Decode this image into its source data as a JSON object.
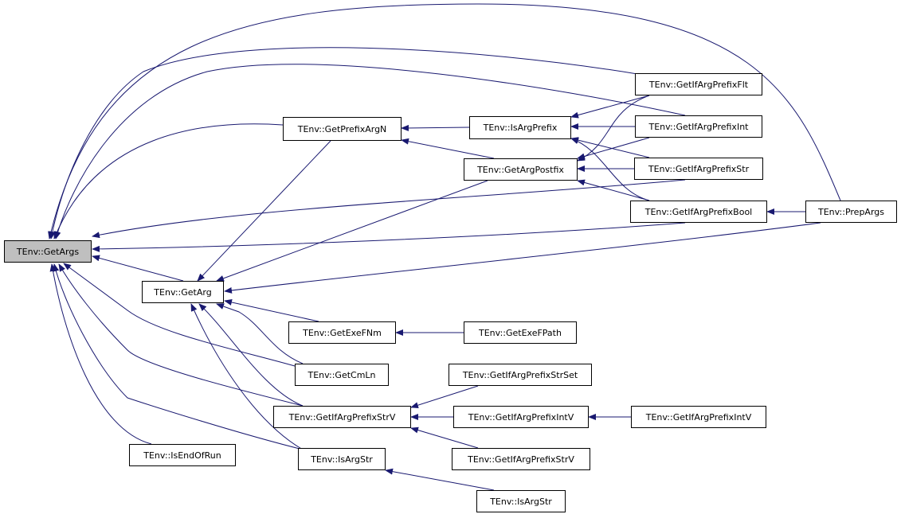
{
  "colors": {
    "edge": "#191970",
    "root_fill": "#bfbfbf",
    "node_fill": "#ffffff"
  },
  "nodes": [
    {
      "id": "getargs",
      "label": "TEnv::GetArgs",
      "root": true
    },
    {
      "id": "prefixargn",
      "label": "TEnv::GetPrefixArgN"
    },
    {
      "id": "isargprefix",
      "label": "TEnv::IsArgPrefix"
    },
    {
      "id": "postfix",
      "label": "TEnv::GetArgPostfix"
    },
    {
      "id": "flt",
      "label": "TEnv::GetIfArgPrefixFlt"
    },
    {
      "id": "int",
      "label": "TEnv::GetIfArgPrefixInt"
    },
    {
      "id": "str",
      "label": "TEnv::GetIfArgPrefixStr"
    },
    {
      "id": "bool",
      "label": "TEnv::GetIfArgPrefixBool"
    },
    {
      "id": "prepargs",
      "label": "TEnv::PrepArgs"
    },
    {
      "id": "getarg",
      "label": "TEnv::GetArg"
    },
    {
      "id": "exefnm",
      "label": "TEnv::GetExeFNm"
    },
    {
      "id": "exefpath",
      "label": "TEnv::GetExeFPath"
    },
    {
      "id": "cmln",
      "label": "TEnv::GetCmLn"
    },
    {
      "id": "strset",
      "label": "TEnv::GetIfArgPrefixStrSet"
    },
    {
      "id": "strv",
      "label": "TEnv::GetIfArgPrefixStrV"
    },
    {
      "id": "intv",
      "label": "TEnv::GetIfArgPrefixIntV"
    },
    {
      "id": "intv2",
      "label": "TEnv::GetIfArgPrefixIntV"
    },
    {
      "id": "isendofrun",
      "label": "TEnv::IsEndOfRun"
    },
    {
      "id": "isargstr",
      "label": "TEnv::IsArgStr"
    },
    {
      "id": "strv2",
      "label": "TEnv::GetIfArgPrefixStrV"
    },
    {
      "id": "isargstr2",
      "label": "TEnv::IsArgStr"
    }
  ],
  "edges": [
    {
      "from": "prefixargn",
      "to": "getargs"
    },
    {
      "from": "prepargs",
      "to": "getargs"
    },
    {
      "from": "flt",
      "to": "getargs"
    },
    {
      "from": "int",
      "to": "getargs"
    },
    {
      "from": "str",
      "to": "getargs"
    },
    {
      "from": "bool",
      "to": "getargs"
    },
    {
      "from": "getarg",
      "to": "getargs"
    },
    {
      "from": "cmln",
      "to": "getargs"
    },
    {
      "from": "strv",
      "to": "getargs"
    },
    {
      "from": "isargstr",
      "to": "getargs"
    },
    {
      "from": "isendofrun",
      "to": "getargs"
    },
    {
      "from": "prefixargn",
      "to": "getarg"
    },
    {
      "from": "postfix",
      "to": "getarg"
    },
    {
      "from": "prepargs",
      "to": "getarg"
    },
    {
      "from": "exefnm",
      "to": "getarg"
    },
    {
      "from": "cmln",
      "to": "getarg"
    },
    {
      "from": "strv",
      "to": "getarg"
    },
    {
      "from": "isargstr",
      "to": "getarg"
    },
    {
      "from": "exefpath",
      "to": "exefnm"
    },
    {
      "from": "isargprefix",
      "to": "prefixargn"
    },
    {
      "from": "postfix",
      "to": "prefixargn"
    },
    {
      "from": "flt",
      "to": "isargprefix"
    },
    {
      "from": "flt",
      "to": "postfix"
    },
    {
      "from": "int",
      "to": "isargprefix"
    },
    {
      "from": "int",
      "to": "postfix"
    },
    {
      "from": "str",
      "to": "isargprefix"
    },
    {
      "from": "str",
      "to": "postfix"
    },
    {
      "from": "bool",
      "to": "isargprefix"
    },
    {
      "from": "bool",
      "to": "postfix"
    },
    {
      "from": "prepargs",
      "to": "bool"
    },
    {
      "from": "strset",
      "to": "strv"
    },
    {
      "from": "intv",
      "to": "strv"
    },
    {
      "from": "strv2",
      "to": "strv"
    },
    {
      "from": "intv2",
      "to": "intv"
    },
    {
      "from": "isargstr2",
      "to": "isargstr"
    }
  ]
}
